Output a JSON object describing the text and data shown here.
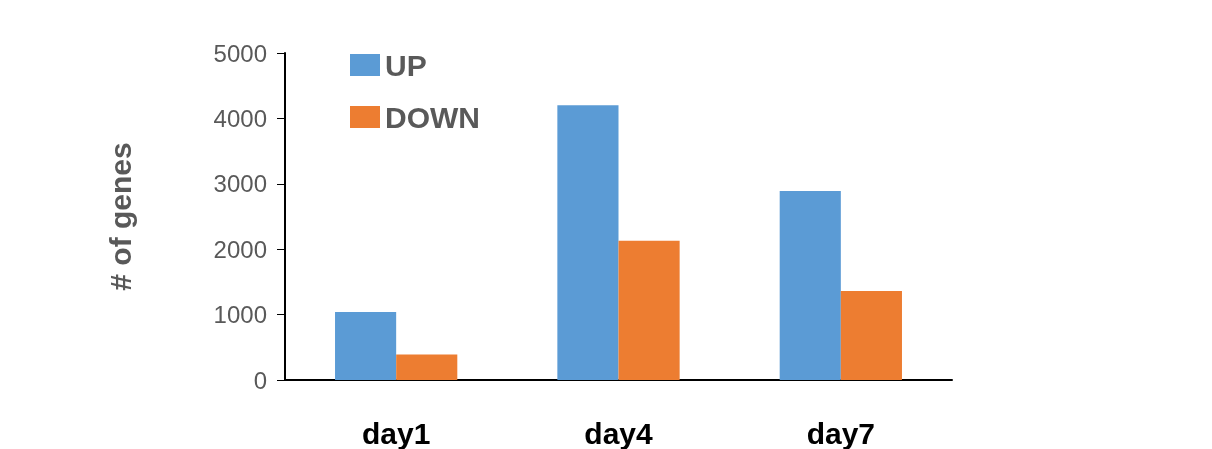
{
  "chart_data": {
    "type": "bar",
    "ylabel": "# of genes",
    "categories": [
      "day1",
      "day4",
      "day7"
    ],
    "series": [
      {
        "name": "UP",
        "color": "#5b9bd5",
        "values": [
          1040,
          4200,
          2890
        ]
      },
      {
        "name": "DOWN",
        "color": "#ed7d31",
        "values": [
          390,
          2130,
          1360
        ]
      }
    ],
    "ylim": [
      0,
      5000
    ],
    "yticks": [
      0,
      1000,
      2000,
      3000,
      4000,
      5000
    ],
    "grid": false,
    "legend": "top left"
  }
}
